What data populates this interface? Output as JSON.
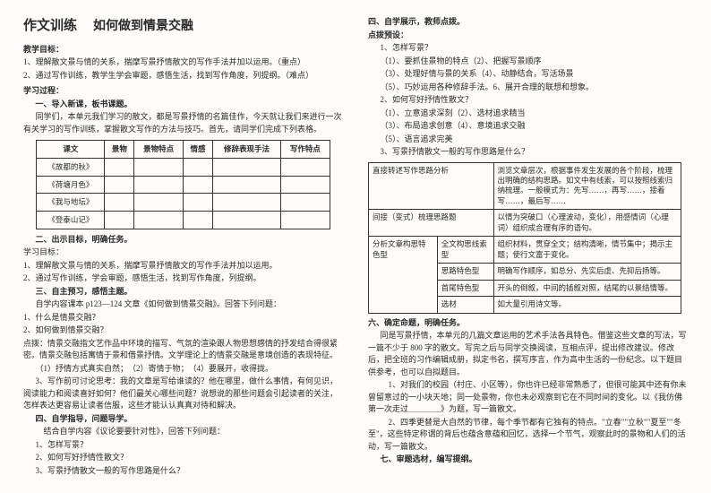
{
  "left": {
    "title_main": "作文训练",
    "title_sub": "如何做到情景交融",
    "goal_head": "教学目标：",
    "goal1": "1、理解散文景与情的关系，揣摩写景抒情散文的写作手法并加以运用。（重点）",
    "goal2": "2、通过写作训练，教学生学会审题，感悟生活，找到写作角度，列提纲。（难点）",
    "proc_head": "学习过程：",
    "s1_head": "一、导入新课，板书课题。",
    "s1_p1": "同学们，本单元我们学习的散文，都是写景抒情的名篇佳作，今天就让我们来进行一次有关学习的写作训练，掌握散文写作的方法与技巧。首先，请同学们完成下列表格。",
    "t1_h": [
      "课文",
      "景物",
      "景物特点",
      "情感",
      "修辞表现手法",
      "写作特点"
    ],
    "t1_rows": [
      "《故都的秋》",
      "《荷塘月色》",
      "《我与地坛》",
      "《登泰山记》"
    ],
    "s2_head": "二、出示目标，明确任务。",
    "s2_l0": "学习目标：",
    "s2_l1": "1、理解散文景与情的关系，揣摩写景抒情散文的写作手法并加以运用。",
    "s2_l2": "2、通过写作训练，学会审题，感悟生活，找到写作角度，列提纲。",
    "s3_head": "三、自主预习，感悟主题。",
    "s3_p0": "自学内容课本 p123—124 文章《如何做到情景交融》。回答下列问题：",
    "s3_q1": "1、什么是情景交融？",
    "s3_q2": "2、如何做到情景交融？",
    "s3_a": "点拨：情景交融指文艺作品中环境的描写、气氛的渲染跟人物思想感情的抒发结合得很紧密。情景交融包括寓情于景和借景抒情。文学理论上的情景交融是意境创造的表现特征。",
    "s3_list": "（1）抒情方式真实自然；　（2）寄情于物；　（4）要展开，收得拢。",
    "s3_p3": "3、写作前可讨论思考：我的文章是写给谁读的？他在哪里，做什么事情，有何见识，阅读能力和阅读喜好如何？他们最关心哪些问题？说想说的那些问题会引起读者的关注，怎样表达更容易让读者信服，这些才能认认真真对待和解决。",
    "s4_head": "四、自学指导，问题导学。",
    "s4_p0": "结合自学内容《议论要要针对性》，回答下列问题：",
    "s4_q1": "1、怎样写景？",
    "s4_q2": "2、如何写好抒情性散文？",
    "s4_q3": "3、写景抒情散文一般的写作思路是什么？"
  },
  "right": {
    "s4b_head": "四、自学展示，教师点拨。",
    "pb_head": "点拨预设：",
    "q1_head": "1、怎样写景？",
    "q1_1": "（1）、要抓住景物的特点（2）、把握写景顺序",
    "q1_2": "（3）、处理好情与景的关系（4）、动静结合，写活场景",
    "q1_3": "（5）、巧妙运用各种修辞手法。6、展开合理的联想和想象。",
    "q2_head": "2、如何写好抒情性散文？",
    "q2_1": "（1）、立意追求深刻（2）、选材追求精当",
    "q2_2": "（3）、布局追求创意（4）、意境追求交融",
    "q2_3": "（5）、语言追求完美",
    "q3_head": "3、写景抒情散文一般的写作思路是什么？",
    "t2": {
      "r1c1": "直接转述写作思路分析",
      "r1c2": "浏览文章层次，根据事件发生发展的各个阶段，梳理出明确的结构思路。如文中有线索，可以按照线索归纳梳理。一般模式为：先写……，再写……，接着写……，最后写……",
      "r2c1": "间接（变式）梳理思路题",
      "r2c2": "以情为突破口（心理波动，变化），用感情词（心理词）组织成合理有序的语句。",
      "r3c1a": "分析文章构思特色型",
      "r3c1b": "全文构思线索型",
      "r3c2": "组织材料，贯穿全文；结构清晰，情节集中；揭示主题；使行文富于变化。",
      "r4c1": "思路特色型",
      "r4c2": "明确写作顺序，如总分、先实后虚、先抑后扬等。",
      "r5c1": "首尾特色型",
      "r5c2": "开头的倒叙，中间的插叙对照，结尾的以景结情等。",
      "r6c1": "选材",
      "r6c2": "如大量引用诗文等。"
    },
    "s6_head": "六、确定命题，明确任务。",
    "s6_p1": "同是写景抒情，本单元的几篇文章运用的艺术手法各具特色。借鉴这些文章的写法，写一篇不少于 800 字的散文。写完之后与同学交换阅读，互相点评，提出修改建议。修改后，把全班的习作编辑成册，拟定书名，撰写序言，作为高中生活的一份纪念。以下题目供参考，也可以自拟题目。",
    "s6_p2": "1、对我们的校园（村庄、小区等），你也许已经非常熟悉了，但很可能其中还有你未曾留意过的一小块天地；同一处景物，你也未必观察到它在不同时间的变化。以《我仿佛第一次走过＿＿＿＿》为题，写一篇散文。",
    "s6_p3": "2、四季更替是大自然的节律，每个季节都有它独有的特点。\"立春\"\"立秋\"\"夏至\"\"冬至\"，这些特定称谓的背后也蕴含意蕴和回忆，选择一个节气，观察此时的景物和人们的活动，写一篇散文。",
    "s7_head": "七、审题选材，编写提纲。"
  }
}
